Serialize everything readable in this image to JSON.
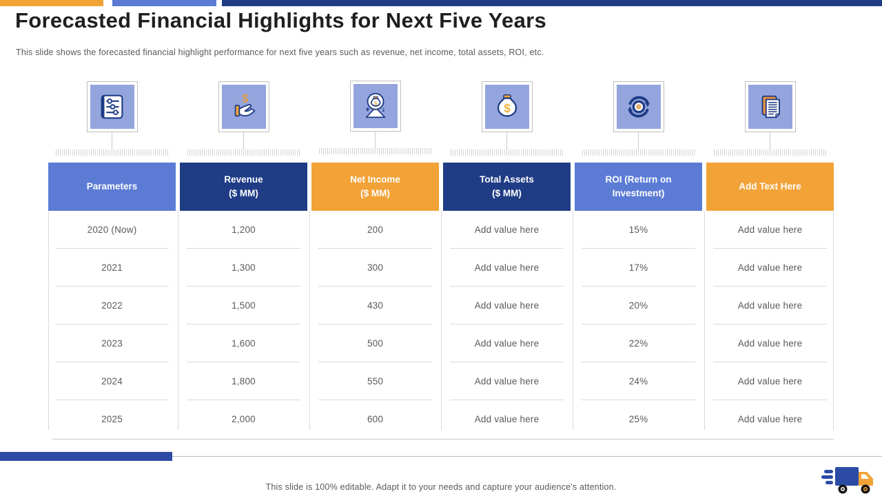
{
  "slide": {
    "title": "Forecasted Financial Highlights for Next Five Years",
    "subtitle": "This slide shows the forecasted financial highlight performance for next five years such as revenue, net income, total assets, ROI, etc.",
    "footer_note": "This slide is 100% editable. Adapt it to your needs and capture your audience's attention."
  },
  "colors": {
    "accent_orange": "#F2A338",
    "accent_blue": "#5B7BD5",
    "accent_navy": "#1F3C85",
    "icon_tile_fill": "#94A5DD",
    "body_text_gray": "#595959",
    "footer_bar_blue": "#2B4BA5"
  },
  "icons": [
    {
      "name": "sliders-settings-icon"
    },
    {
      "name": "hand-receiving-dollar-icon"
    },
    {
      "name": "money-bag-growth-scale-icon"
    },
    {
      "name": "money-bag-icon"
    },
    {
      "name": "roi-circular-arrows-icon"
    },
    {
      "name": "documents-icon"
    }
  ],
  "table": {
    "columns": [
      {
        "label": "Parameters",
        "color": "#5B7BD5"
      },
      {
        "label": "Revenue\n($ MM)",
        "color": "#1F3C85"
      },
      {
        "label": "Net Income\n($ MM)",
        "color": "#F2A338"
      },
      {
        "label": "Total Assets\n($ MM)",
        "color": "#1F3C85"
      },
      {
        "label": "ROI (Return on\nInvestment)",
        "color": "#5B7BD5"
      },
      {
        "label": "Add Text Here",
        "color": "#F2A338"
      }
    ],
    "rows": [
      [
        "2020 (Now)",
        "1,200",
        "200",
        "Add value here",
        "15%",
        "Add value here"
      ],
      [
        "2021",
        "1,300",
        "300",
        "Add value here",
        "17%",
        "Add value here"
      ],
      [
        "2022",
        "1,500",
        "430",
        "Add value here",
        "20%",
        "Add value here"
      ],
      [
        "2023",
        "1,600",
        "500",
        "Add value here",
        "22%",
        "Add value here"
      ],
      [
        "2024",
        "1,800",
        "550",
        "Add value here",
        "24%",
        "Add value here"
      ],
      [
        "2025",
        "2,000",
        "600",
        "Add value here",
        "25%",
        "Add value here"
      ]
    ]
  }
}
